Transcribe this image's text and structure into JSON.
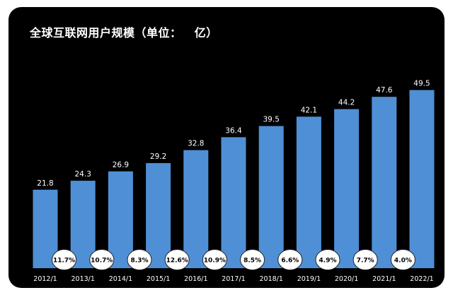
{
  "chart_data": {
    "type": "bar",
    "title": "全球互联网用户规模（单位：   亿）",
    "xlabel": "",
    "ylabel": "",
    "ylim": [
      0,
      52
    ],
    "grid": false,
    "categories": [
      "2012/1",
      "2013/1",
      "2014/1",
      "2015/1",
      "2016/1",
      "2017/1",
      "2018/1",
      "2019/1",
      "2020/1",
      "2021/1",
      "2022/1"
    ],
    "values": [
      21.8,
      24.3,
      26.9,
      29.2,
      32.8,
      36.4,
      39.5,
      42.1,
      44.2,
      47.6,
      49.5
    ],
    "value_labels": [
      "21.8",
      "24.3",
      "26.9",
      "29.2",
      "32.8",
      "36.4",
      "39.5",
      "42.1",
      "44.2",
      "47.6",
      "49.5"
    ],
    "growth_rates": [
      "11.7%",
      "10.7%",
      "8.3%",
      "12.6%",
      "10.9%",
      "8.5%",
      "6.6%",
      "4.9%",
      "7.7%",
      "4.0%"
    ],
    "colors": {
      "background": "#000000",
      "bar": "#4f8fd6",
      "text": "#ffffff",
      "bubble": "#ffffff",
      "bubble_text": "#000000"
    }
  }
}
